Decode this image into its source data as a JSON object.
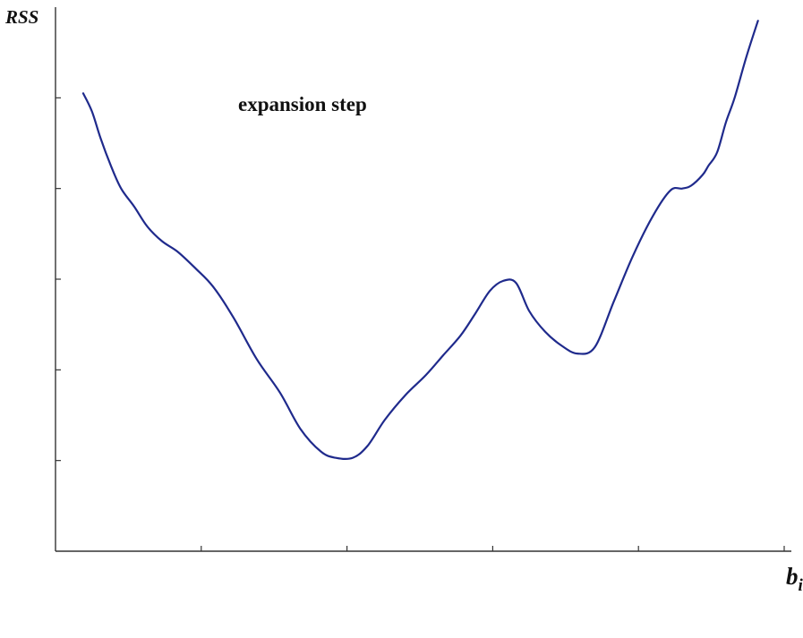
{
  "chart_data": {
    "type": "line",
    "title": "",
    "ylabel": "RSS",
    "xlabel": "b",
    "xlabel_subscript": "i",
    "annotation": "expansion step",
    "grid": false,
    "legend": "none",
    "xlim": [
      0,
      5
    ],
    "ylim": [
      0,
      6
    ],
    "x_ticks": [
      1,
      2,
      3,
      4,
      5
    ],
    "y_ticks": [
      1,
      2,
      3,
      4,
      5
    ],
    "line_color": "#1f2a8c",
    "series": [
      {
        "x": [
          0.19,
          0.25,
          0.31,
          0.38,
          0.45,
          0.54,
          0.63,
          0.73,
          0.84,
          0.96,
          1.08,
          1.22,
          1.38,
          1.54,
          1.68,
          1.82,
          1.92,
          2.04,
          2.14,
          2.26,
          2.4,
          2.54,
          2.66,
          2.78,
          2.88,
          2.98,
          3.07,
          3.16,
          3.25,
          3.36,
          3.47,
          3.58,
          3.7,
          3.83,
          3.96,
          4.1,
          4.22,
          4.3,
          4.36,
          4.44,
          4.48,
          4.54,
          4.6,
          4.66,
          4.74,
          4.82
        ],
        "y": [
          5.05,
          4.85,
          4.55,
          4.25,
          4.0,
          3.8,
          3.58,
          3.42,
          3.3,
          3.12,
          2.92,
          2.58,
          2.12,
          1.75,
          1.35,
          1.1,
          1.03,
          1.03,
          1.16,
          1.45,
          1.72,
          1.94,
          2.16,
          2.38,
          2.62,
          2.87,
          2.98,
          2.96,
          2.65,
          2.42,
          2.27,
          2.18,
          2.25,
          2.75,
          3.25,
          3.7,
          3.98,
          4.0,
          4.03,
          4.15,
          4.25,
          4.4,
          4.73,
          5.0,
          5.45,
          5.85
        ]
      }
    ]
  }
}
